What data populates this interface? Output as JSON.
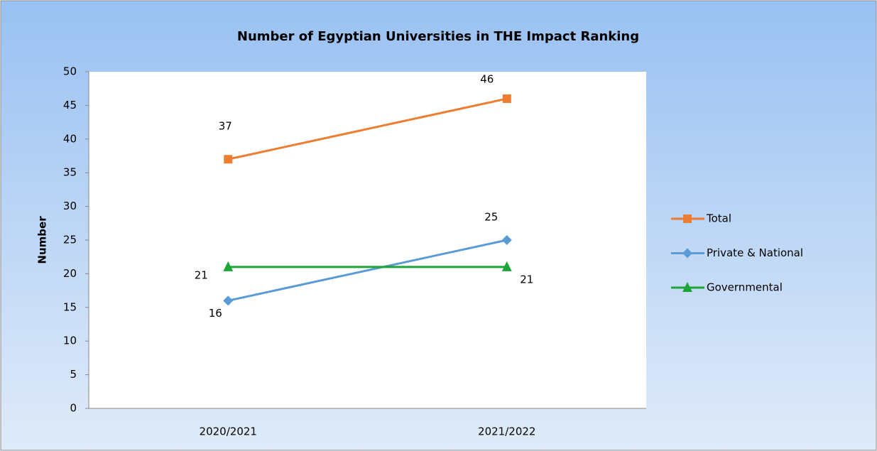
{
  "chart_data": {
    "type": "line",
    "title": "Number of Egyptian Universities in THE Impact Ranking",
    "y_label": "Number",
    "categories": [
      "2020/2021",
      "2021/2022"
    ],
    "series": [
      {
        "name": "Total",
        "color": "#ed7d31",
        "marker": "square",
        "values": [
          37,
          46
        ]
      },
      {
        "name": "Private & National",
        "color": "#5b9bd5",
        "marker": "diamond",
        "values": [
          16,
          25
        ]
      },
      {
        "name": "Governmental",
        "color": "#1ea53a",
        "marker": "triangle",
        "values": [
          21,
          21
        ]
      }
    ],
    "ylim": [
      0,
      50
    ],
    "yticks": [
      0,
      5,
      10,
      15,
      20,
      25,
      30,
      35,
      40,
      45,
      50
    ],
    "grid": false,
    "legend": "right"
  }
}
